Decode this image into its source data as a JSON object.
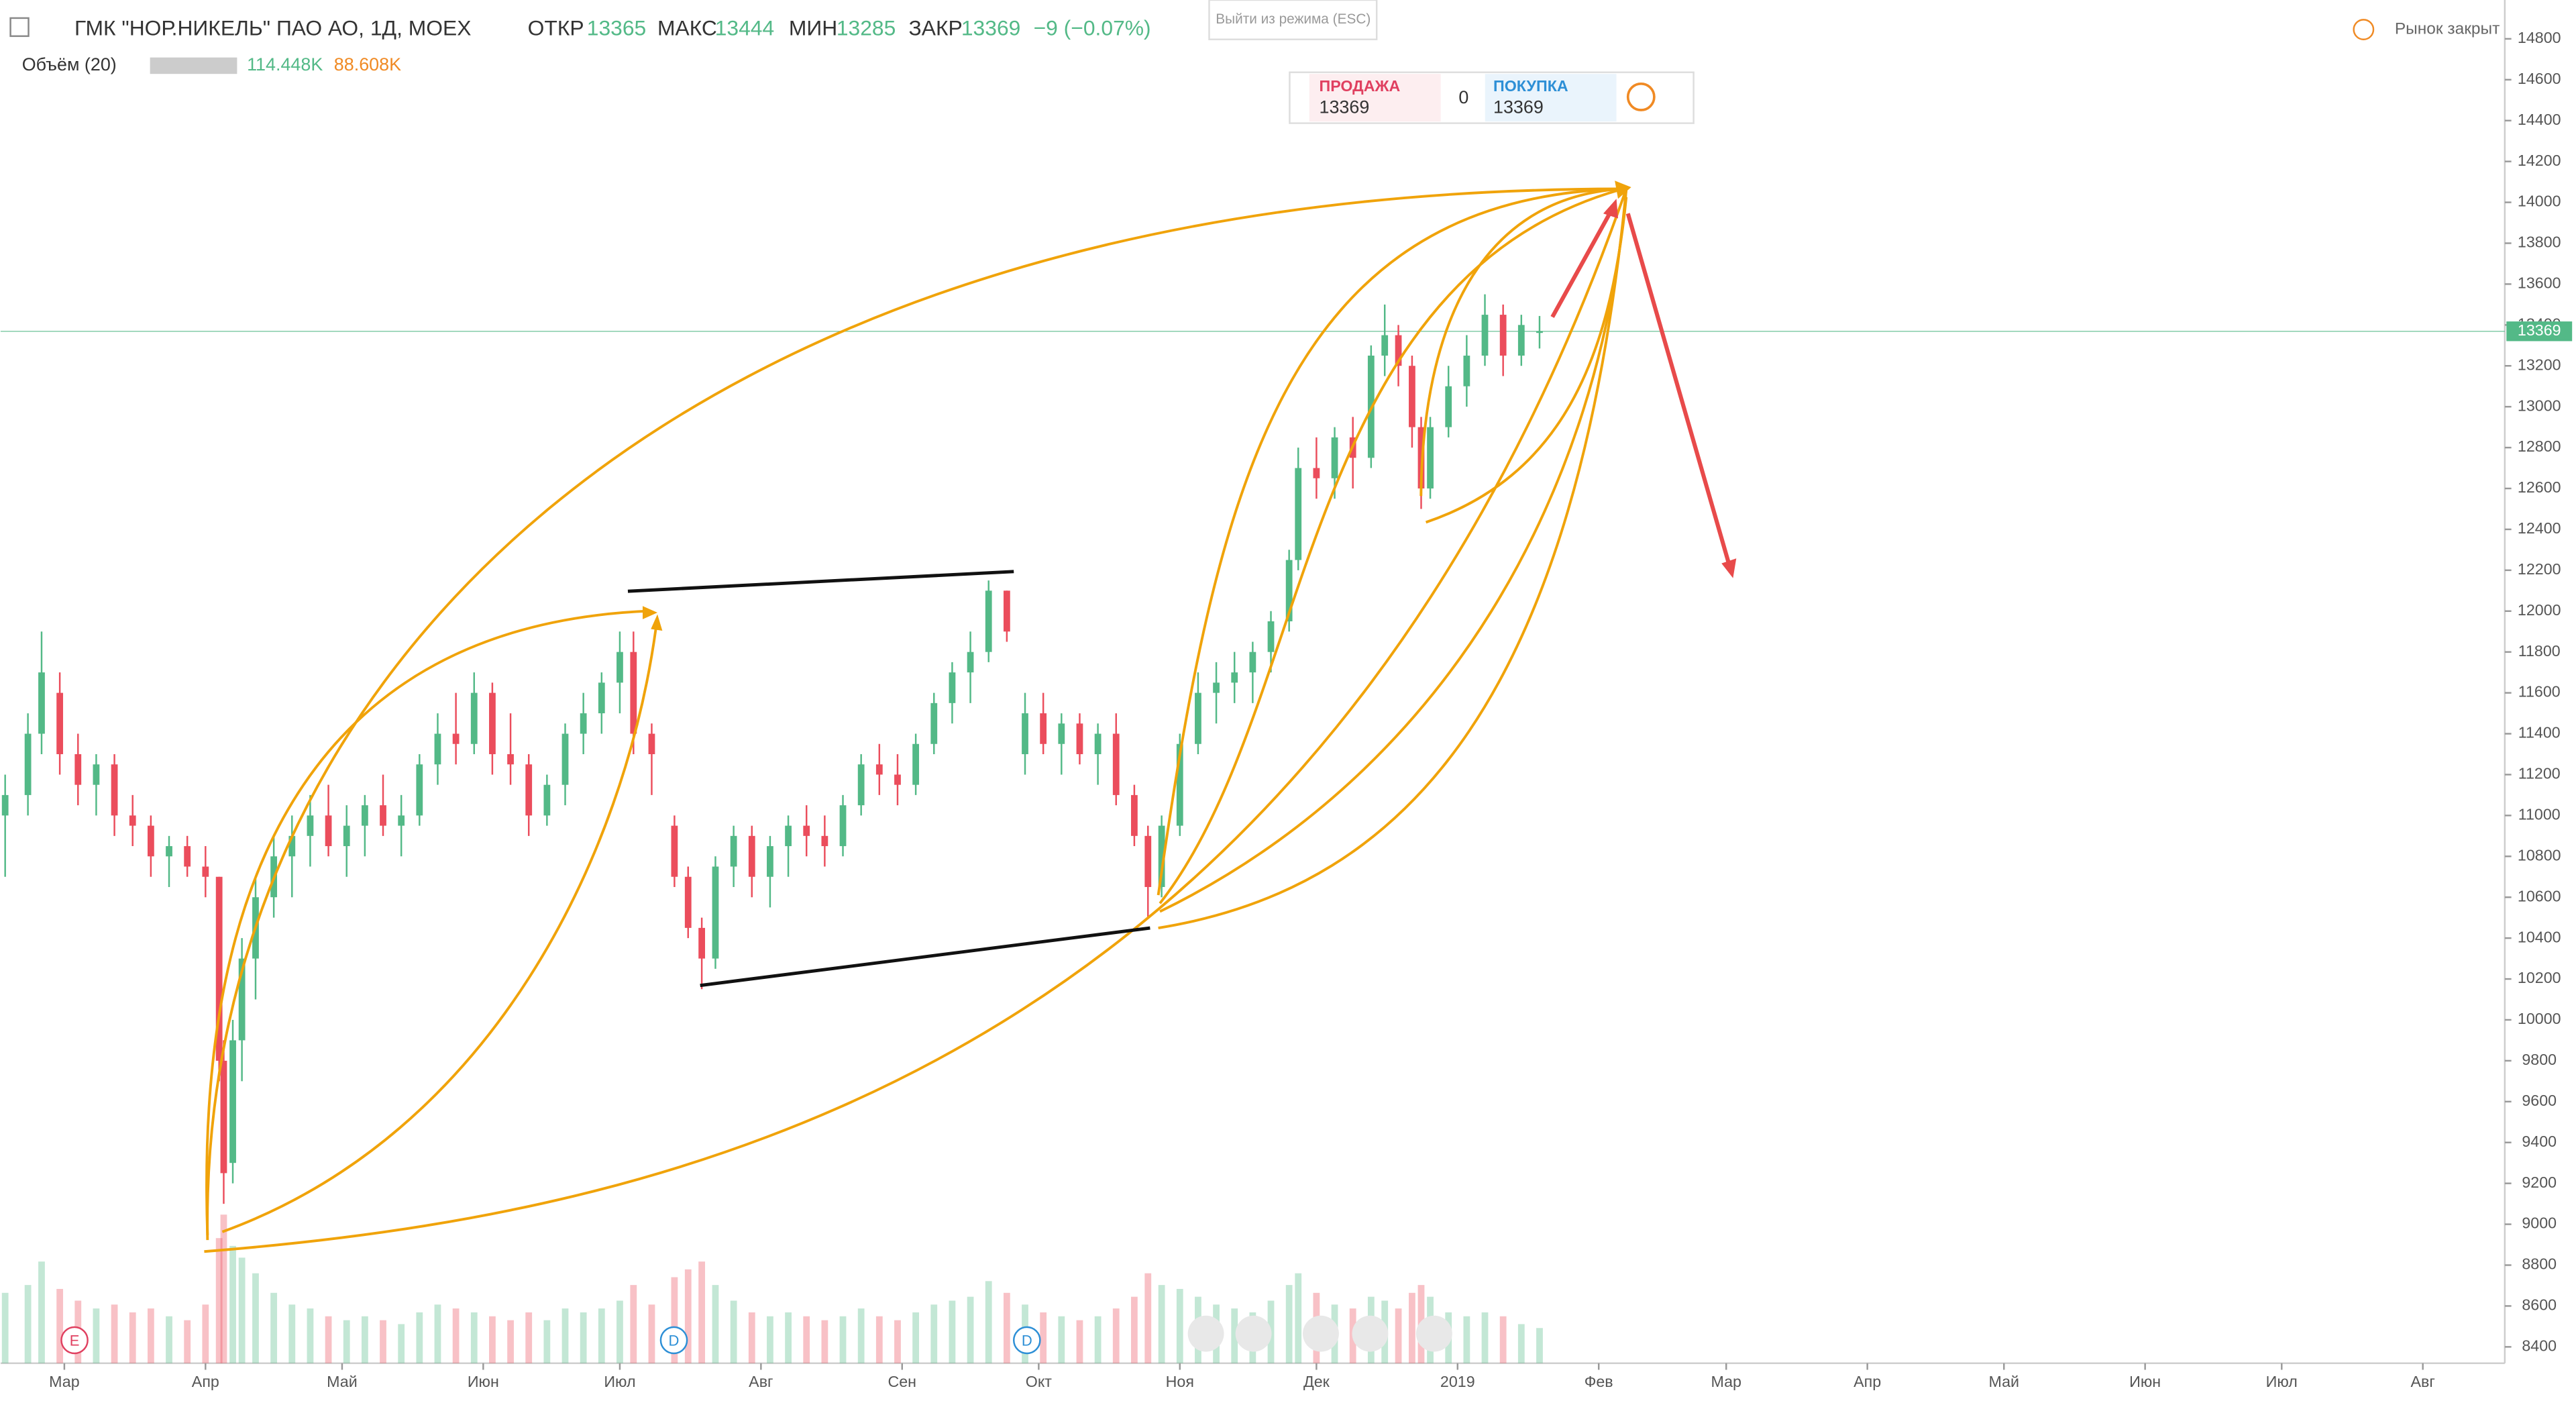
{
  "header": {
    "title": "ГМК \"НОР.НИКЕЛЬ\" ПАО АО, 1Д, MOEX",
    "open_label": "ОТКР",
    "open": 13365,
    "high_label": "МАКС",
    "high": 13444,
    "low_label": "МИН",
    "low": 13285,
    "close_label": "ЗАКР",
    "close": 13369,
    "change": "−9 (−0.07%)",
    "volume_label": "Объём (20)",
    "volume": "114.448K",
    "volume_ma": "88.608K",
    "exit_mode": "Выйти из режима (ESC)",
    "market_status": "Рынок закрыт"
  },
  "trade": {
    "sell_label": "ПРОДАЖА",
    "sell": 13369,
    "spread": 0,
    "buy_label": "ПОКУПКА",
    "buy": 13369
  },
  "events": [
    "E",
    "D",
    "D"
  ],
  "chart_data": {
    "type": "candlestick",
    "up_color": "#53b987",
    "down_color": "#eb4d5c",
    "last_price": 13369,
    "xlim": [
      14,
      564
    ],
    "ylim": [
      8320,
      14990
    ],
    "volume_ylim": [
      0,
      420
    ],
    "xticks": [
      {
        "value": 28,
        "label": "Мар"
      },
      {
        "value": 59,
        "label": "Апр"
      },
      {
        "value": 89,
        "label": "Май"
      },
      {
        "value": 120,
        "label": "Июн"
      },
      {
        "value": 150,
        "label": "Июл"
      },
      {
        "value": 181,
        "label": "Авг"
      },
      {
        "value": 212,
        "label": "Сен"
      },
      {
        "value": 242,
        "label": "Окт"
      },
      {
        "value": 273,
        "label": "Ноя"
      },
      {
        "value": 303,
        "label": "Дек"
      },
      {
        "value": 334,
        "label": "2019"
      },
      {
        "value": 365,
        "label": "Фев"
      },
      {
        "value": 393,
        "label": "Мар"
      },
      {
        "value": 424,
        "label": "Апр"
      },
      {
        "value": 454,
        "label": "Май"
      },
      {
        "value": 485,
        "label": "Июн"
      },
      {
        "value": 515,
        "label": "Июл"
      },
      {
        "value": 546,
        "label": "Авг"
      }
    ],
    "yticks": [
      8400,
      8600,
      8800,
      9000,
      9200,
      9400,
      9600,
      9800,
      10000,
      10200,
      10400,
      10600,
      10800,
      11000,
      11200,
      11400,
      11600,
      11800,
      12000,
      12200,
      12400,
      12600,
      12800,
      13000,
      13200,
      13400,
      13600,
      13800,
      14000,
      14200,
      14400,
      14600,
      14800
    ],
    "candles": [
      {
        "x": 15,
        "open": 11000,
        "high": 11200,
        "low": 10700,
        "close": 11100,
        "volume": 180
      },
      {
        "x": 20,
        "open": 11100,
        "high": 11500,
        "low": 11000,
        "close": 11400,
        "volume": 200
      },
      {
        "x": 23,
        "open": 11400,
        "high": 11900,
        "low": 11300,
        "close": 11700,
        "volume": 260
      },
      {
        "x": 27,
        "open": 11600,
        "high": 11700,
        "low": 11200,
        "close": 11300,
        "volume": 190
      },
      {
        "x": 31,
        "open": 11300,
        "high": 11400,
        "low": 11050,
        "close": 11150,
        "volume": 160
      },
      {
        "x": 35,
        "open": 11150,
        "high": 11300,
        "low": 11000,
        "close": 11250,
        "volume": 140
      },
      {
        "x": 39,
        "open": 11250,
        "high": 11300,
        "low": 10900,
        "close": 11000,
        "volume": 150
      },
      {
        "x": 43,
        "open": 11000,
        "high": 11100,
        "low": 10850,
        "close": 10950,
        "volume": 130
      },
      {
        "x": 47,
        "open": 10950,
        "high": 11000,
        "low": 10700,
        "close": 10800,
        "volume": 140
      },
      {
        "x": 51,
        "open": 10800,
        "high": 10900,
        "low": 10650,
        "close": 10850,
        "volume": 120
      },
      {
        "x": 55,
        "open": 10850,
        "high": 10900,
        "low": 10700,
        "close": 10750,
        "volume": 110
      },
      {
        "x": 59,
        "open": 10750,
        "high": 10850,
        "low": 10600,
        "close": 10700,
        "volume": 150
      },
      {
        "x": 62,
        "open": 10700,
        "high": 10700,
        "low": 9700,
        "close": 9800,
        "volume": 320
      },
      {
        "x": 63,
        "open": 9800,
        "high": 9900,
        "low": 9100,
        "close": 9250,
        "volume": 380
      },
      {
        "x": 65,
        "open": 9300,
        "high": 10000,
        "low": 9200,
        "close": 9900,
        "volume": 300
      },
      {
        "x": 67,
        "open": 9900,
        "high": 10400,
        "low": 9700,
        "close": 10300,
        "volume": 270
      },
      {
        "x": 70,
        "open": 10300,
        "high": 10700,
        "low": 10100,
        "close": 10600,
        "volume": 230
      },
      {
        "x": 74,
        "open": 10600,
        "high": 10900,
        "low": 10500,
        "close": 10800,
        "volume": 180
      },
      {
        "x": 78,
        "open": 10800,
        "high": 11000,
        "low": 10600,
        "close": 10900,
        "volume": 150
      },
      {
        "x": 82,
        "open": 10900,
        "high": 11100,
        "low": 10750,
        "close": 11000,
        "volume": 140
      },
      {
        "x": 86,
        "open": 11000,
        "high": 11150,
        "low": 10800,
        "close": 10850,
        "volume": 120
      },
      {
        "x": 90,
        "open": 10850,
        "high": 11050,
        "low": 10700,
        "close": 10950,
        "volume": 110
      },
      {
        "x": 94,
        "open": 10950,
        "high": 11100,
        "low": 10800,
        "close": 11050,
        "volume": 120
      },
      {
        "x": 98,
        "open": 11050,
        "high": 11200,
        "low": 10900,
        "close": 10950,
        "volume": 110
      },
      {
        "x": 102,
        "open": 10950,
        "high": 11100,
        "low": 10800,
        "close": 11000,
        "volume": 100
      },
      {
        "x": 106,
        "open": 11000,
        "high": 11300,
        "low": 10950,
        "close": 11250,
        "volume": 130
      },
      {
        "x": 110,
        "open": 11250,
        "high": 11500,
        "low": 11150,
        "close": 11400,
        "volume": 150
      },
      {
        "x": 114,
        "open": 11400,
        "high": 11600,
        "low": 11250,
        "close": 11350,
        "volume": 140
      },
      {
        "x": 118,
        "open": 11350,
        "high": 11700,
        "low": 11300,
        "close": 11600,
        "volume": 130
      },
      {
        "x": 122,
        "open": 11600,
        "high": 11650,
        "low": 11200,
        "close": 11300,
        "volume": 120
      },
      {
        "x": 126,
        "open": 11300,
        "high": 11500,
        "low": 11150,
        "close": 11250,
        "volume": 110
      },
      {
        "x": 130,
        "open": 11250,
        "high": 11300,
        "low": 10900,
        "close": 11000,
        "volume": 130
      },
      {
        "x": 134,
        "open": 11000,
        "high": 11200,
        "low": 10950,
        "close": 11150,
        "volume": 110
      },
      {
        "x": 138,
        "open": 11150,
        "high": 11450,
        "low": 11050,
        "close": 11400,
        "volume": 140
      },
      {
        "x": 142,
        "open": 11400,
        "high": 11600,
        "low": 11300,
        "close": 11500,
        "volume": 130
      },
      {
        "x": 146,
        "open": 11500,
        "high": 11700,
        "low": 11400,
        "close": 11650,
        "volume": 140
      },
      {
        "x": 150,
        "open": 11650,
        "high": 11900,
        "low": 11500,
        "close": 11800,
        "volume": 160
      },
      {
        "x": 153,
        "open": 11800,
        "high": 11900,
        "low": 11300,
        "close": 11400,
        "volume": 200
      },
      {
        "x": 157,
        "open": 11400,
        "high": 11450,
        "low": 11100,
        "close": 11300,
        "volume": 150
      },
      {
        "x": 162,
        "open": 10950,
        "high": 11000,
        "low": 10650,
        "close": 10700,
        "volume": 220
      },
      {
        "x": 165,
        "open": 10700,
        "high": 10750,
        "low": 10400,
        "close": 10450,
        "volume": 240
      },
      {
        "x": 168,
        "open": 10450,
        "high": 10500,
        "low": 10150,
        "close": 10300,
        "volume": 260
      },
      {
        "x": 171,
        "open": 10300,
        "high": 10800,
        "low": 10250,
        "close": 10750,
        "volume": 200
      },
      {
        "x": 175,
        "open": 10750,
        "high": 10950,
        "low": 10650,
        "close": 10900,
        "volume": 160
      },
      {
        "x": 179,
        "open": 10900,
        "high": 10950,
        "low": 10600,
        "close": 10700,
        "volume": 130
      },
      {
        "x": 183,
        "open": 10700,
        "high": 10900,
        "low": 10550,
        "close": 10850,
        "volume": 120
      },
      {
        "x": 187,
        "open": 10850,
        "high": 11000,
        "low": 10700,
        "close": 10950,
        "volume": 130
      },
      {
        "x": 191,
        "open": 10950,
        "high": 11050,
        "low": 10800,
        "close": 10900,
        "volume": 120
      },
      {
        "x": 195,
        "open": 10900,
        "high": 11000,
        "low": 10750,
        "close": 10850,
        "volume": 110
      },
      {
        "x": 199,
        "open": 10850,
        "high": 11100,
        "low": 10800,
        "close": 11050,
        "volume": 120
      },
      {
        "x": 203,
        "open": 11050,
        "high": 11300,
        "low": 11000,
        "close": 11250,
        "volume": 140
      },
      {
        "x": 207,
        "open": 11250,
        "high": 11350,
        "low": 11100,
        "close": 11200,
        "volume": 120
      },
      {
        "x": 211,
        "open": 11200,
        "high": 11300,
        "low": 11050,
        "close": 11150,
        "volume": 110
      },
      {
        "x": 215,
        "open": 11150,
        "high": 11400,
        "low": 11100,
        "close": 11350,
        "volume": 130
      },
      {
        "x": 219,
        "open": 11350,
        "high": 11600,
        "low": 11300,
        "close": 11550,
        "volume": 150
      },
      {
        "x": 223,
        "open": 11550,
        "high": 11750,
        "low": 11450,
        "close": 11700,
        "volume": 160
      },
      {
        "x": 227,
        "open": 11700,
        "high": 11900,
        "low": 11550,
        "close": 11800,
        "volume": 170
      },
      {
        "x": 231,
        "open": 11800,
        "high": 12150,
        "low": 11750,
        "close": 12100,
        "volume": 210
      },
      {
        "x": 235,
        "open": 12100,
        "high": 12100,
        "low": 11850,
        "close": 11900,
        "volume": 180
      },
      {
        "x": 239,
        "open": 11300,
        "high": 11600,
        "low": 11200,
        "close": 11500,
        "volume": 150
      },
      {
        "x": 243,
        "open": 11500,
        "high": 11600,
        "low": 11300,
        "close": 11350,
        "volume": 130
      },
      {
        "x": 247,
        "open": 11350,
        "high": 11500,
        "low": 11200,
        "close": 11450,
        "volume": 120
      },
      {
        "x": 251,
        "open": 11450,
        "high": 11500,
        "low": 11250,
        "close": 11300,
        "volume": 110
      },
      {
        "x": 255,
        "open": 11300,
        "high": 11450,
        "low": 11150,
        "close": 11400,
        "volume": 120
      },
      {
        "x": 259,
        "open": 11400,
        "high": 11500,
        "low": 11050,
        "close": 11100,
        "volume": 140
      },
      {
        "x": 263,
        "open": 11100,
        "high": 11150,
        "low": 10850,
        "close": 10900,
        "volume": 170
      },
      {
        "x": 266,
        "open": 10900,
        "high": 10950,
        "low": 10500,
        "close": 10650,
        "volume": 230
      },
      {
        "x": 269,
        "open": 10650,
        "high": 11000,
        "low": 10600,
        "close": 10950,
        "volume": 200
      },
      {
        "x": 273,
        "open": 10950,
        "high": 11400,
        "low": 10900,
        "close": 11350,
        "volume": 190
      },
      {
        "x": 277,
        "open": 11350,
        "high": 11700,
        "low": 11300,
        "close": 11600,
        "volume": 170
      },
      {
        "x": 281,
        "open": 11600,
        "high": 11750,
        "low": 11450,
        "close": 11650,
        "volume": 150
      },
      {
        "x": 285,
        "open": 11650,
        "high": 11800,
        "low": 11550,
        "close": 11700,
        "volume": 140
      },
      {
        "x": 289,
        "open": 11700,
        "high": 11850,
        "low": 11550,
        "close": 11800,
        "volume": 130
      },
      {
        "x": 293,
        "open": 11800,
        "high": 12000,
        "low": 11700,
        "close": 11950,
        "volume": 160
      },
      {
        "x": 297,
        "open": 11950,
        "high": 12300,
        "low": 11900,
        "close": 12250,
        "volume": 200
      },
      {
        "x": 299,
        "open": 12250,
        "high": 12800,
        "low": 12200,
        "close": 12700,
        "volume": 230
      },
      {
        "x": 303,
        "open": 12700,
        "high": 12850,
        "low": 12550,
        "close": 12650,
        "volume": 180
      },
      {
        "x": 307,
        "open": 12650,
        "high": 12900,
        "low": 12550,
        "close": 12850,
        "volume": 150
      },
      {
        "x": 311,
        "open": 12850,
        "high": 12950,
        "low": 12600,
        "close": 12750,
        "volume": 140
      },
      {
        "x": 315,
        "open": 12750,
        "high": 13300,
        "low": 12700,
        "close": 13250,
        "volume": 170
      },
      {
        "x": 318,
        "open": 13250,
        "high": 13500,
        "low": 13150,
        "close": 13350,
        "volume": 160
      },
      {
        "x": 321,
        "open": 13350,
        "high": 13400,
        "low": 13100,
        "close": 13200,
        "volume": 140
      },
      {
        "x": 324,
        "open": 13200,
        "high": 13250,
        "low": 12800,
        "close": 12900,
        "volume": 180
      },
      {
        "x": 326,
        "open": 12900,
        "high": 12950,
        "low": 12500,
        "close": 12600,
        "volume": 200
      },
      {
        "x": 328,
        "open": 12600,
        "high": 12950,
        "low": 12550,
        "close": 12900,
        "volume": 170
      },
      {
        "x": 332,
        "open": 12900,
        "high": 13200,
        "low": 12850,
        "close": 13100,
        "volume": 130
      },
      {
        "x": 336,
        "open": 13100,
        "high": 13350,
        "low": 13000,
        "close": 13250,
        "volume": 120
      },
      {
        "x": 340,
        "open": 13250,
        "high": 13550,
        "low": 13200,
        "close": 13450,
        "volume": 130
      },
      {
        "x": 344,
        "open": 13450,
        "high": 13500,
        "low": 13150,
        "close": 13250,
        "volume": 120
      },
      {
        "x": 348,
        "open": 13250,
        "high": 13450,
        "low": 13200,
        "close": 13400,
        "volume": 100
      },
      {
        "x": 352,
        "open": 13365,
        "high": 13444,
        "low": 13285,
        "close": 13369,
        "volume": 90
      }
    ]
  }
}
